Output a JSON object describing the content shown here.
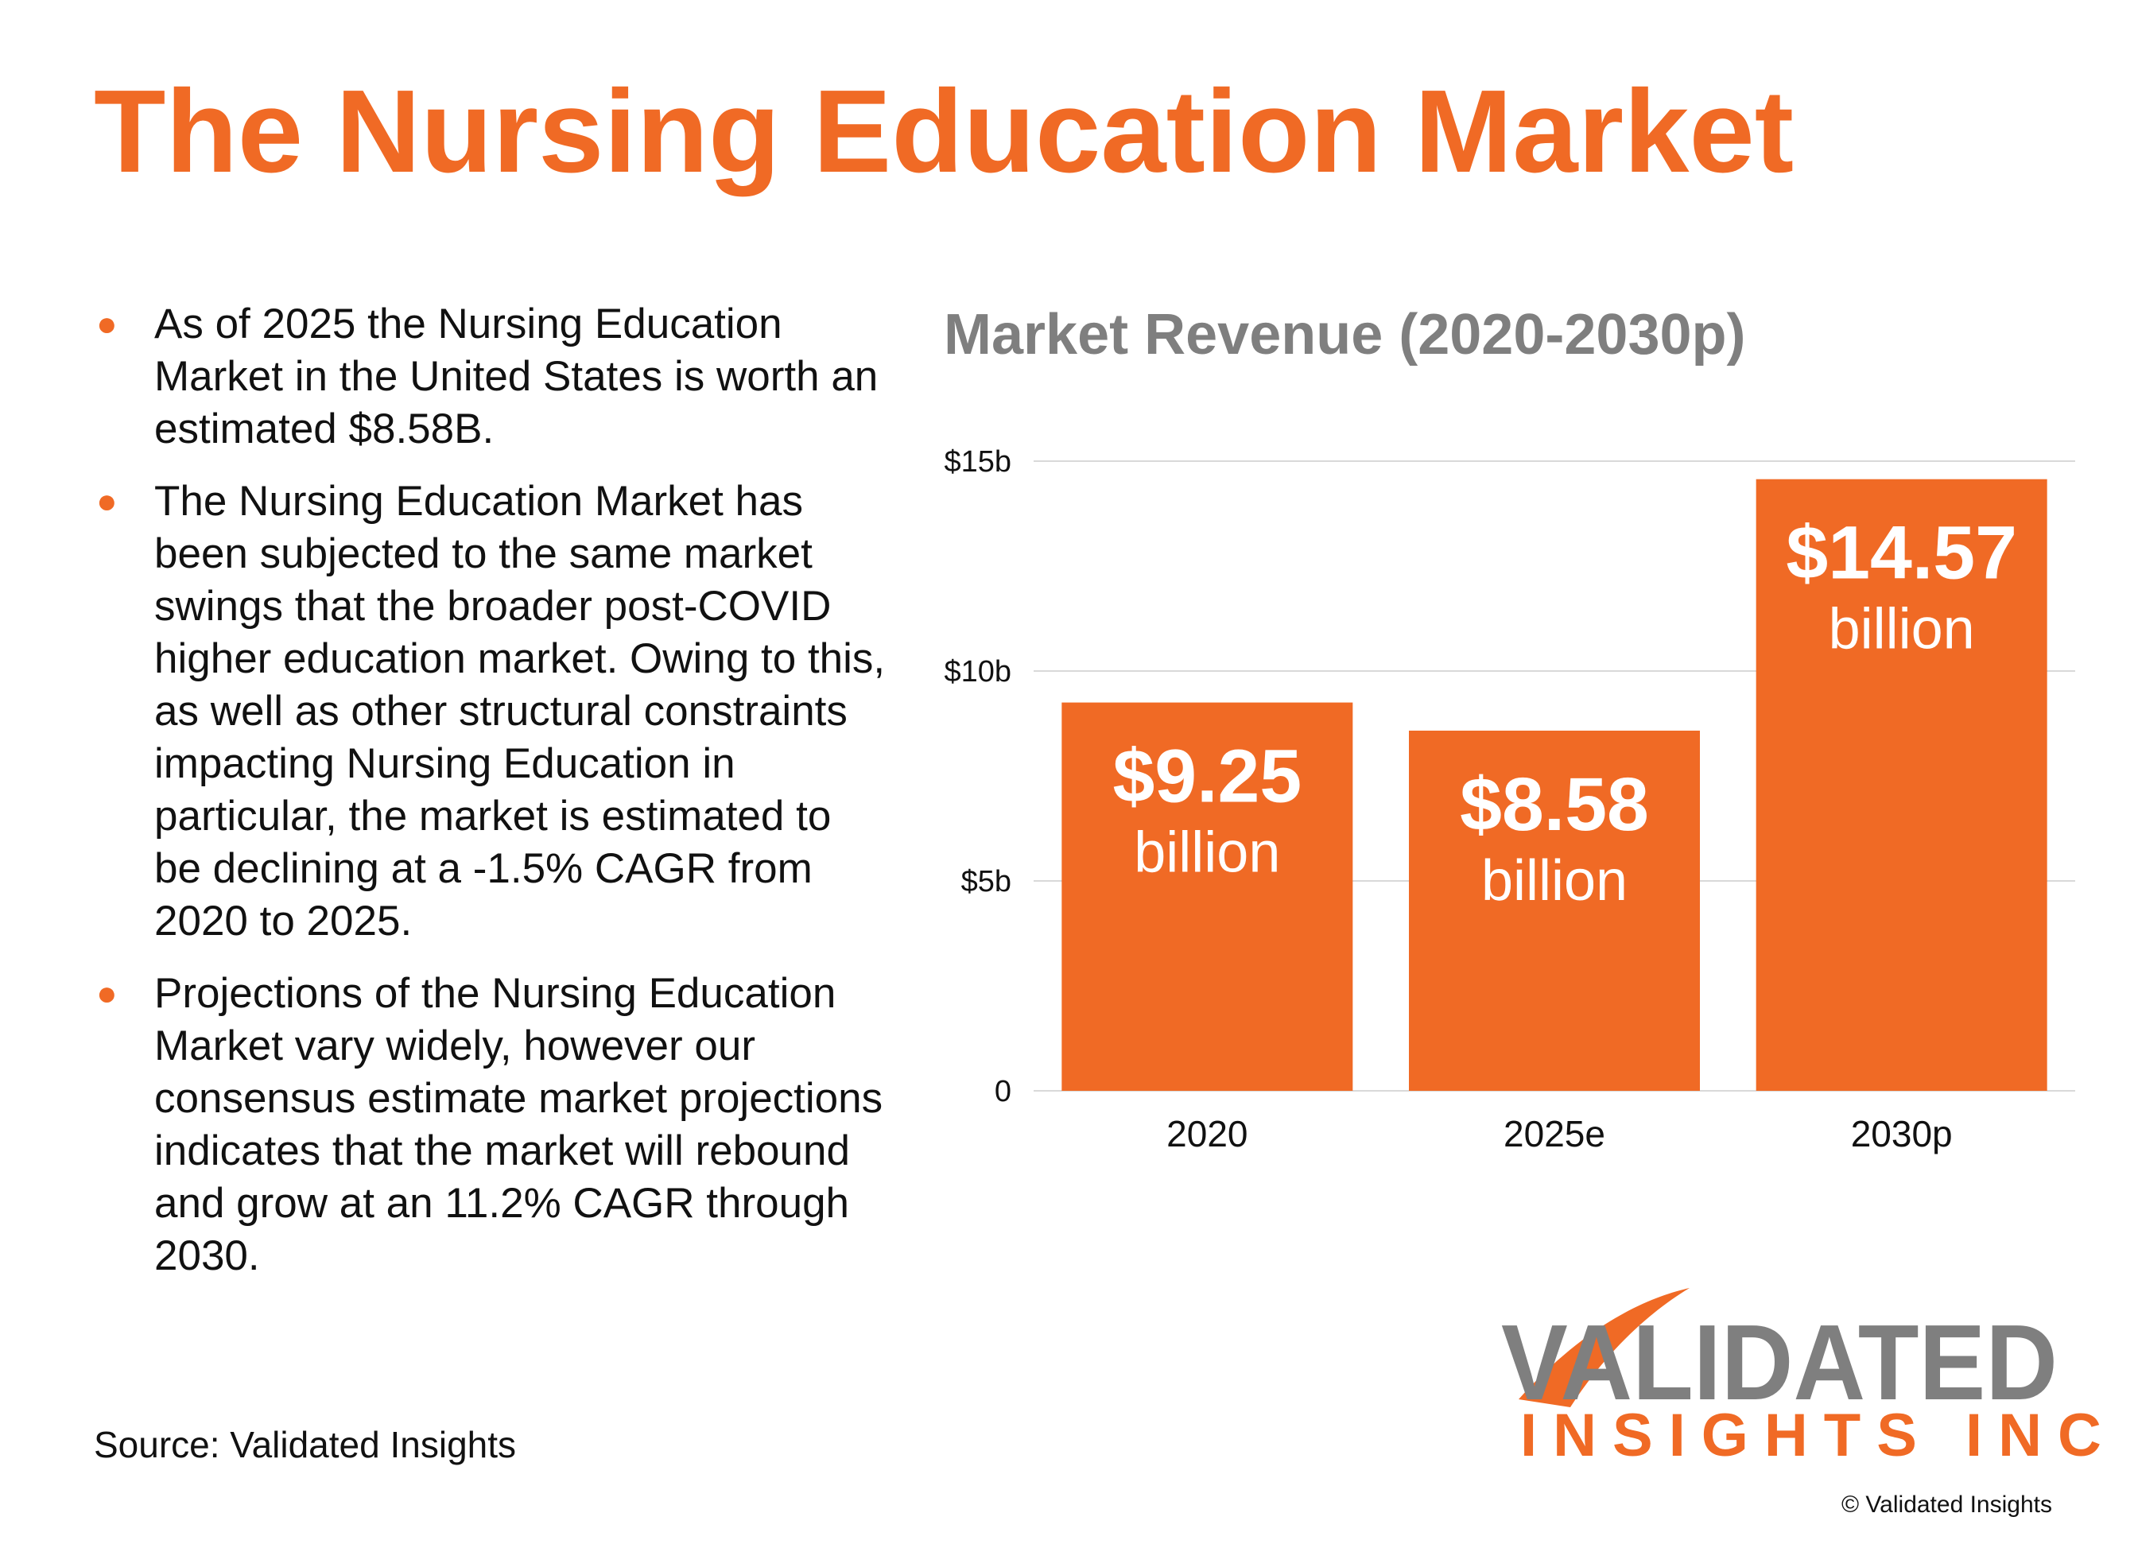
{
  "title": "The Nursing Education Market",
  "bullets": [
    "As of 2025 the Nursing Education Market in the United States is worth an estimated $8.58B.",
    "The Nursing Education Market has been subjected to the same market swings that the broader post-COVID higher education market. Owing to this, as well as other structural constraints impacting Nursing Education in particular, the market is estimated to be declining at a -1.5% CAGR from 2020 to 2025.",
    "Projections of the Nursing Education Market vary widely, however our consensus estimate market projections indicates that the market will rebound and grow at an 11.2% CAGR through 2030."
  ],
  "bullet_symbol": "●",
  "source": "Source: Validated Insights",
  "copyright": "© Validated Insights",
  "logo": {
    "main": "VALIDATED",
    "sub": "INSIGHTS INC"
  },
  "colors": {
    "accent": "#f06a25",
    "title_gray": "#7f7f7f",
    "grid": "#d9d9d9",
    "logo_gray": "#7f7f7f"
  },
  "chart_data": {
    "type": "bar",
    "title": "Market Revenue (2020-2030p)",
    "categories": [
      "2020",
      "2025e",
      "2030p"
    ],
    "values": [
      9.25,
      8.58,
      14.57
    ],
    "value_labels": [
      "$9.25",
      "$8.58",
      "$14.57"
    ],
    "unit_label": "billion",
    "yticks": [
      0,
      5,
      10,
      15
    ],
    "ytick_labels": [
      "0",
      "$5b",
      "$10b",
      "$15b"
    ],
    "ylim": [
      0,
      15
    ],
    "grid": true,
    "legend": "none",
    "bar_color": "#f06a25"
  }
}
